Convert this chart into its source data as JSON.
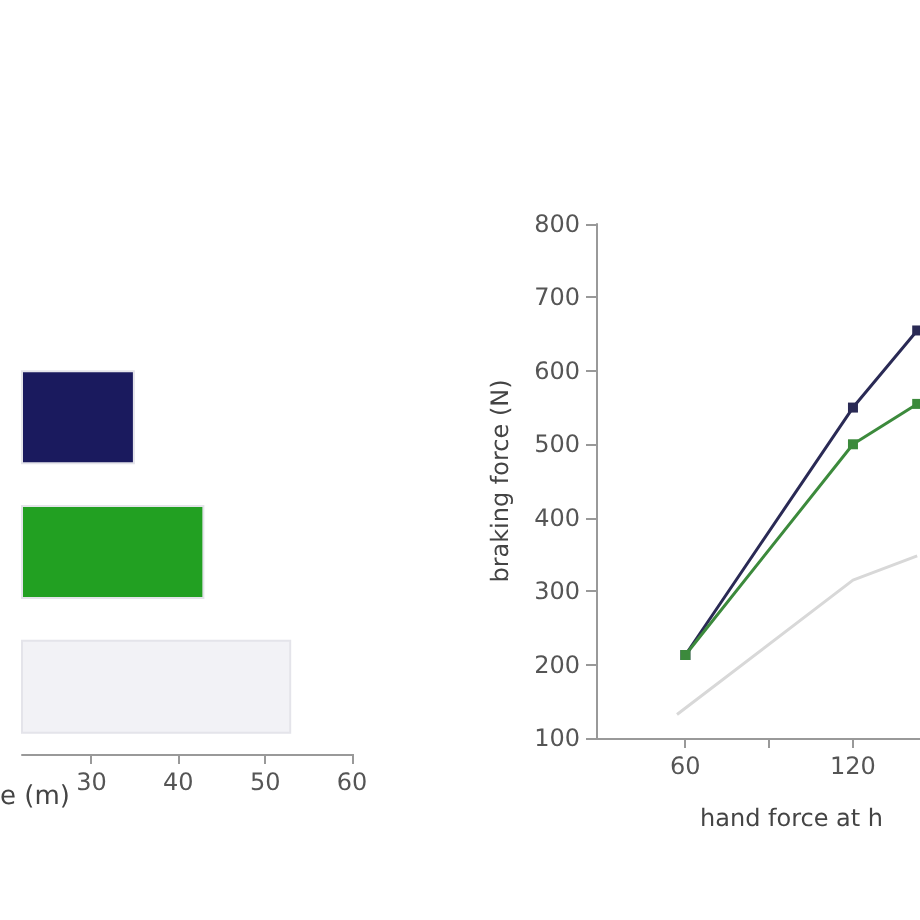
{
  "chart_data": [
    {
      "type": "bar",
      "orientation": "horizontal",
      "xlabel": "e (m)",
      "categories": [
        null,
        null,
        null
      ],
      "series": [
        {
          "colors": [
            "#1a1a5e",
            "#22a022",
            "#f2f2f6"
          ],
          "values": [
            35,
            43,
            53
          ]
        }
      ],
      "xlim": [
        22,
        60
      ],
      "xticks": [
        30,
        40,
        50,
        60
      ],
      "grid": false
    },
    {
      "type": "line",
      "xlabel": "hand force at h",
      "ylabel": "braking force (N)",
      "series": [
        {
          "color": "#2a2a55",
          "x": [
            60,
            120,
            143
          ],
          "values": [
            213,
            550,
            655
          ],
          "marker": "square"
        },
        {
          "color": "#3c8a3c",
          "x": [
            60,
            120,
            143
          ],
          "values": [
            213,
            500,
            555
          ],
          "marker": "square"
        },
        {
          "color": "#d8d8d8",
          "x": [
            57,
            120,
            143
          ],
          "values": [
            132,
            315,
            348
          ],
          "marker": "none"
        }
      ],
      "xlim": [
        28,
        144
      ],
      "xticks": [
        60,
        {
          "value": 90,
          "label": null
        },
        120
      ],
      "ylim": [
        100,
        800
      ],
      "yticks": [
        100,
        200,
        300,
        400,
        500,
        600,
        700,
        800
      ],
      "grid": false
    }
  ]
}
